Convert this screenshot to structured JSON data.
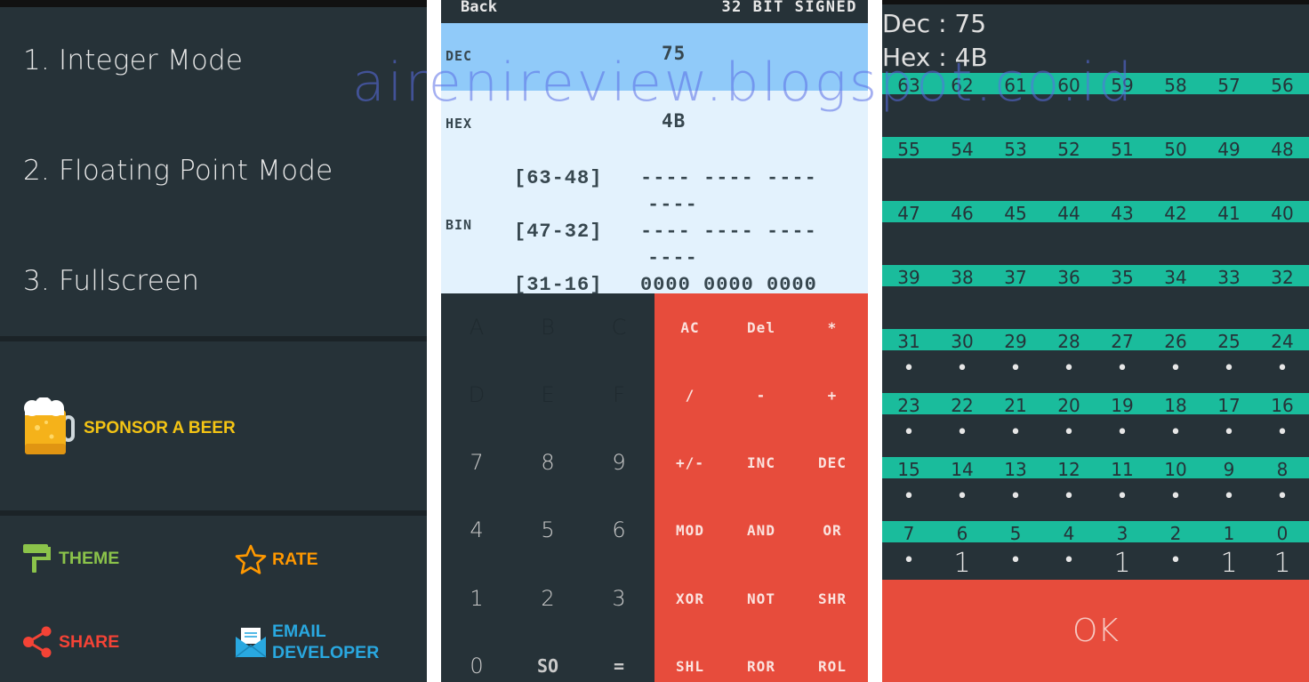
{
  "menu": {
    "items": [
      "1. Integer Mode",
      "2. Floating Point Mode",
      "3. Fullscreen"
    ],
    "sponsor": {
      "label": "SPONSOR A BEER",
      "icon": "beer-mug-icon",
      "color": "#f4c414"
    },
    "actions": [
      {
        "label": "THEME",
        "icon": "paint-roller-icon",
        "color": "#8bc34a"
      },
      {
        "label": "RATE",
        "icon": "star-icon",
        "color": "#ff9800"
      },
      {
        "label": "SHARE",
        "icon": "share-icon",
        "color": "#f44336"
      },
      {
        "label": "EMAIL",
        "label2": "DEVELOPER",
        "icon": "email-icon",
        "color": "#29a8e0"
      }
    ]
  },
  "calculator": {
    "back_label": "Back",
    "mode_label": "32 BIT SIGNED",
    "dec_label": "DEC",
    "dec_value": "75",
    "hex_label": "HEX",
    "hex_value": "4B",
    "bin_label": "BIN",
    "bin_rows": [
      {
        "range": "[63-48]",
        "bits": "---- ---- ----",
        "wrap": "----"
      },
      {
        "range": "[47-32]",
        "bits": "---- ---- ----",
        "wrap": "----"
      },
      {
        "range": "[31-16]",
        "bits": "0000 0000 0000",
        "wrap": ""
      }
    ],
    "left_keys": [
      [
        "A",
        "B",
        "C"
      ],
      [
        "D",
        "E",
        "F"
      ],
      [
        "7",
        "8",
        "9"
      ],
      [
        "4",
        "5",
        "6"
      ],
      [
        "1",
        "2",
        "3"
      ],
      [
        "0",
        "SO",
        "="
      ]
    ],
    "right_keys": [
      [
        "AC",
        "Del",
        "*"
      ],
      [
        "/",
        "-",
        "+"
      ],
      [
        "+/-",
        "INC",
        "DEC"
      ],
      [
        "MOD",
        "AND",
        "OR"
      ],
      [
        "XOR",
        "NOT",
        "SHR"
      ],
      [
        "SHL",
        "ROR",
        "ROL"
      ]
    ],
    "colors": {
      "display_highlight": "#90caf9",
      "display_bg": "#e3f2fd",
      "operator_pad": "#e74c3c",
      "pad": "#263238"
    }
  },
  "bits": {
    "dec_line": "Dec : 75",
    "hex_line": "Hex : 4B",
    "rows": [
      {
        "positions": [
          "63",
          "62",
          "61",
          "60",
          "59",
          "58",
          "57",
          "56"
        ],
        "values": []
      },
      {
        "positions": [
          "55",
          "54",
          "53",
          "52",
          "51",
          "50",
          "49",
          "48"
        ],
        "values": []
      },
      {
        "positions": [
          "47",
          "46",
          "45",
          "44",
          "43",
          "42",
          "41",
          "40"
        ],
        "values": []
      },
      {
        "positions": [
          "39",
          "38",
          "37",
          "36",
          "35",
          "34",
          "33",
          "32"
        ],
        "values": []
      },
      {
        "positions": [
          "31",
          "30",
          "29",
          "28",
          "27",
          "26",
          "25",
          "24"
        ],
        "values": [
          0,
          0,
          0,
          0,
          0,
          0,
          0,
          0
        ]
      },
      {
        "positions": [
          "23",
          "22",
          "21",
          "20",
          "19",
          "18",
          "17",
          "16"
        ],
        "values": [
          0,
          0,
          0,
          0,
          0,
          0,
          0,
          0
        ]
      },
      {
        "positions": [
          "15",
          "14",
          "13",
          "12",
          "11",
          "10",
          "9",
          "8"
        ],
        "values": [
          0,
          0,
          0,
          0,
          0,
          0,
          0,
          0
        ]
      },
      {
        "positions": [
          "7",
          "6",
          "5",
          "4",
          "3",
          "2",
          "1",
          "0"
        ],
        "values": [
          0,
          1,
          0,
          0,
          1,
          0,
          1,
          1
        ]
      }
    ],
    "one_label": "1",
    "zero_glyph": "•",
    "ok_label": "OK",
    "colors": {
      "band": "#1abc9c",
      "ok": "#e74c3c"
    }
  },
  "watermark": "airenireview.blogspot.co.id"
}
